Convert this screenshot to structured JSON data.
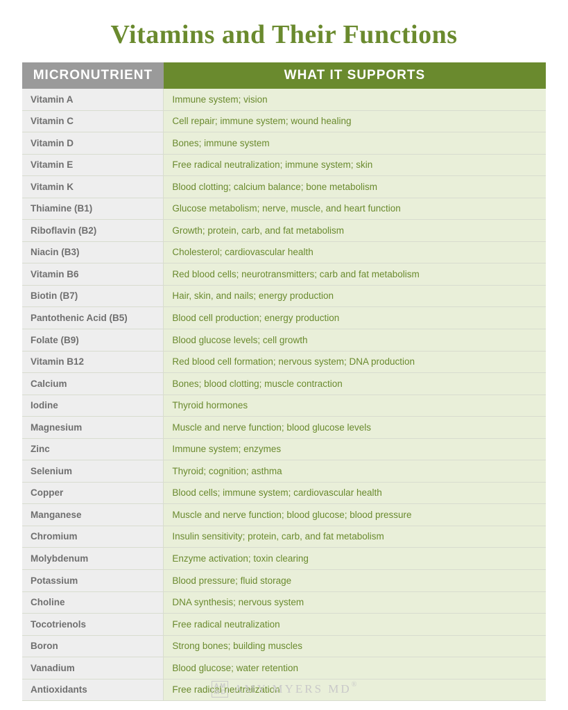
{
  "title": "Vitamins and Their Functions",
  "header": {
    "col1": "MICRONUTRIENT",
    "col2": "WHAT IT SUPPORTS"
  },
  "colors": {
    "title": "#6a8a2e",
    "header_col1_bg": "#9a9a9a",
    "header_col2_bg": "#6a8a2e",
    "header_text": "#ffffff",
    "cell_col1_bg": "#eeeeee",
    "cell_col1_text": "#6f6f6f",
    "cell_col2_bg": "#e9efd9",
    "cell_col2_text": "#6a8a2e",
    "border": "#d8dccf",
    "footer_text": "#c9c9c9"
  },
  "type": "table",
  "rows": [
    {
      "name": "Vitamin A",
      "supports": "Immune system; vision"
    },
    {
      "name": "Vitamin C",
      "supports": "Cell repair; immune system; wound healing"
    },
    {
      "name": "Vitamin D",
      "supports": "Bones; immune system"
    },
    {
      "name": "Vitamin E",
      "supports": "Free radical neutralization; immune system; skin"
    },
    {
      "name": "Vitamin K",
      "supports": "Blood clotting; calcium balance; bone metabolism"
    },
    {
      "name": "Thiamine (B1)",
      "supports": "Glucose metabolism; nerve, muscle, and heart function"
    },
    {
      "name": "Riboflavin (B2)",
      "supports": "Growth; protein, carb, and fat metabolism"
    },
    {
      "name": "Niacin (B3)",
      "supports": "Cholesterol; cardiovascular health"
    },
    {
      "name": "Vitamin B6",
      "supports": "Red blood cells; neurotransmitters; carb and fat metabolism"
    },
    {
      "name": "Biotin (B7)",
      "supports": "Hair, skin, and nails; energy production"
    },
    {
      "name": "Pantothenic Acid (B5)",
      "supports": "Blood cell production; energy production"
    },
    {
      "name": "Folate (B9)",
      "supports": "Blood glucose levels; cell growth"
    },
    {
      "name": "Vitamin B12",
      "supports": "Red blood cell formation; nervous system; DNA production"
    },
    {
      "name": "Calcium",
      "supports": "Bones; blood clotting; muscle contraction"
    },
    {
      "name": "Iodine",
      "supports": "Thyroid hormones"
    },
    {
      "name": "Magnesium",
      "supports": "Muscle and nerve function; blood glucose levels"
    },
    {
      "name": "Zinc",
      "supports": "Immune system; enzymes"
    },
    {
      "name": "Selenium",
      "supports": "Thyroid; cognition; asthma"
    },
    {
      "name": "Copper",
      "supports": "Blood cells; immune system; cardiovascular health"
    },
    {
      "name": "Manganese",
      "supports": "Muscle and nerve function; blood glucose; blood pressure"
    },
    {
      "name": "Chromium",
      "supports": "Insulin sensitivity; protein, carb, and fat metabolism"
    },
    {
      "name": "Molybdenum",
      "supports": "Enzyme activation; toxin clearing"
    },
    {
      "name": "Potassium",
      "supports": "Blood pressure; fluid storage"
    },
    {
      "name": "Choline",
      "supports": "DNA synthesis; nervous system"
    },
    {
      "name": "Tocotrienols",
      "supports": "Free radical neutralization"
    },
    {
      "name": "Boron",
      "supports": "Strong bones; building muscles"
    },
    {
      "name": "Vanadium",
      "supports": "Blood glucose; water retention"
    },
    {
      "name": "Antioxidants",
      "supports": "Free radical neutralization"
    }
  ],
  "footer": {
    "logo_top": "A M",
    "logo_bottom": "M D",
    "brand": "AMY MYERS MD",
    "reg": "®"
  }
}
